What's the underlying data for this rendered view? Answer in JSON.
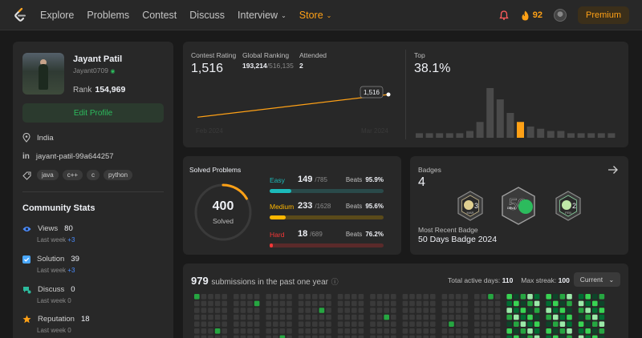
{
  "nav": {
    "links": [
      "Explore",
      "Problems",
      "Contest",
      "Discuss",
      "Interview",
      "Store"
    ],
    "streak": "92",
    "premium": "Premium",
    "colors": {
      "accent": "#ffa116",
      "bell": "#ff5d5d"
    }
  },
  "profile": {
    "name": "Jayant Patil",
    "username": "Jayant0709",
    "rank_label": "Rank",
    "rank": "154,969",
    "edit_label": "Edit Profile",
    "location": "India",
    "linkedin": "jayant-patil-99a644257",
    "skills": [
      "java",
      "c++",
      "c",
      "python"
    ]
  },
  "community": {
    "title": "Community Stats",
    "stats": [
      {
        "label": "Views",
        "value": "80",
        "week_label": "Last week",
        "week_value": "+3"
      },
      {
        "label": "Solution",
        "value": "39",
        "week_label": "Last week",
        "week_value": "+3"
      },
      {
        "label": "Discuss",
        "value": "0",
        "week_label": "Last week",
        "week_value": "0"
      },
      {
        "label": "Reputation",
        "value": "18",
        "week_label": "Last week",
        "week_value": "0"
      }
    ]
  },
  "contest": {
    "rating_label": "Contest Rating",
    "rating": "1,516",
    "global_label": "Global Ranking",
    "global_rank": "193,214",
    "global_total": "/516,135",
    "attended_label": "Attended",
    "attended": "2",
    "tooltip": "1,516",
    "x_labels": [
      "Feb 2024",
      "Mar 2024"
    ],
    "top_label": "Top",
    "top_value": "38.1%",
    "histogram": [
      2,
      2,
      2,
      2,
      2,
      3,
      7,
      22,
      17,
      11,
      7,
      5,
      4,
      3,
      3,
      2,
      2,
      2,
      2,
      2
    ],
    "highlight_index": 10,
    "rating_points": [
      1480,
      1516
    ]
  },
  "solved": {
    "title": "Solved Problems",
    "total": "400",
    "total_label": "Solved",
    "items": [
      {
        "label": "Easy",
        "count": "149",
        "total": "/785",
        "beats_label": "Beats",
        "beats": "95.9%",
        "ratio": 0.19,
        "color": "#1cbaba",
        "track": "#2a4a4a"
      },
      {
        "label": "Medium",
        "count": "233",
        "total": "/1628",
        "beats_label": "Beats",
        "beats": "95.6%",
        "ratio": 0.143,
        "color": "#ffb700",
        "track": "#5a4a1a"
      },
      {
        "label": "Hard",
        "count": "18",
        "total": "/689",
        "beats_label": "Beats",
        "beats": "76.2%",
        "ratio": 0.026,
        "color": "#f63737",
        "track": "#5a2a2a"
      }
    ]
  },
  "badges": {
    "title": "Badges",
    "count": "4",
    "items": [
      {
        "label": "MAR",
        "num": "3"
      },
      {
        "label": "DAYS",
        "num": "50"
      },
      {
        "label": "FEB",
        "num": "2"
      }
    ],
    "recent_label": "Most Recent Badge",
    "recent": "50 Days Badge 2024"
  },
  "submissions": {
    "count": "979",
    "label": "submissions in the past one year",
    "active_label": "Total active days:",
    "active_value": "110",
    "streak_label": "Max streak:",
    "streak_value": "100",
    "period": "Current"
  }
}
